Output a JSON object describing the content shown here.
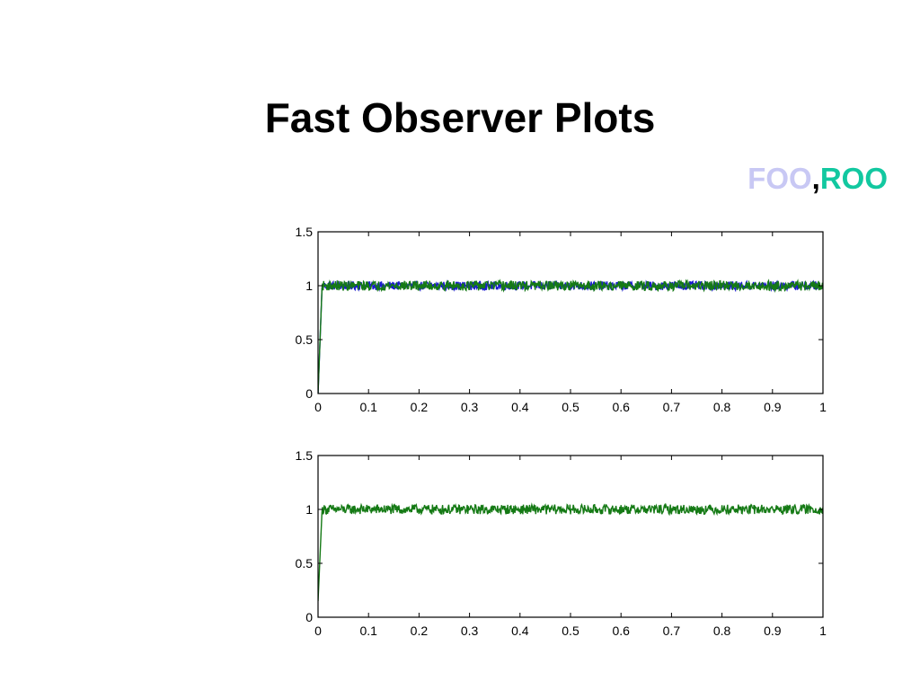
{
  "slide": {
    "title": "Fast Observer Plots",
    "legend": [
      {
        "label": "FOO",
        "color": "#c8c8f4"
      },
      {
        "label": ",",
        "color": "#000000"
      },
      {
        "label": "ROO",
        "color": "#12c8a0"
      }
    ]
  },
  "chart_data": [
    {
      "type": "line",
      "title": "",
      "xlabel": "",
      "ylabel": "",
      "xlim": [
        0,
        1
      ],
      "ylim": [
        0,
        1.5
      ],
      "xticks": [
        0,
        0.1,
        0.2,
        0.3,
        0.4,
        0.5,
        0.6,
        0.7,
        0.8,
        0.9,
        1
      ],
      "xtick_labels": [
        "0",
        "0.1",
        "0.2",
        "0.3",
        "0.4",
        "0.5",
        "0.6",
        "0.7",
        "0.8",
        "0.9",
        "1"
      ],
      "yticks": [
        0,
        0.5,
        1,
        1.5
      ],
      "ytick_labels": [
        "0",
        "0.5",
        "1",
        "1.5"
      ],
      "grid": false,
      "series": [
        {
          "color": "#1a1ad0",
          "rise_end_x": 0.008,
          "steady_value": 1.0,
          "noise_amplitude": 0.04,
          "start_value": 0
        },
        {
          "color": "#157a15",
          "rise_end_x": 0.008,
          "steady_value": 1.0,
          "noise_amplitude": 0.045,
          "start_value": 0
        }
      ]
    },
    {
      "type": "line",
      "title": "",
      "xlabel": "",
      "ylabel": "",
      "xlim": [
        0,
        1
      ],
      "ylim": [
        0,
        1.5
      ],
      "xticks": [
        0,
        0.1,
        0.2,
        0.3,
        0.4,
        0.5,
        0.6,
        0.7,
        0.8,
        0.9,
        1
      ],
      "xtick_labels": [
        "0",
        "0.1",
        "0.2",
        "0.3",
        "0.4",
        "0.5",
        "0.6",
        "0.7",
        "0.8",
        "0.9",
        "1"
      ],
      "yticks": [
        0,
        0.5,
        1,
        1.5
      ],
      "ytick_labels": [
        "0",
        "0.5",
        "1",
        "1.5"
      ],
      "grid": false,
      "series": [
        {
          "color": "#157a15",
          "rise_end_x": 0.008,
          "steady_value": 1.0,
          "noise_amplitude": 0.045,
          "start_value": 0.15
        }
      ]
    }
  ]
}
